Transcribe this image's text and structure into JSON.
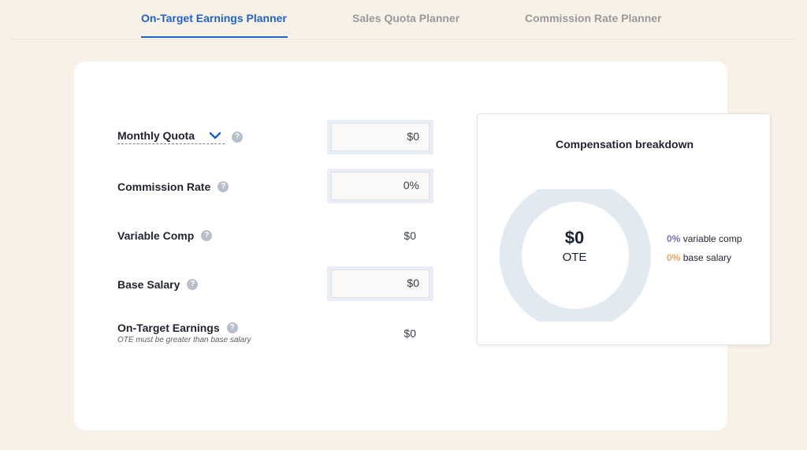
{
  "tabs": [
    {
      "label": "On-Target Earnings Planner",
      "active": true
    },
    {
      "label": "Sales Quota Planner",
      "active": false
    },
    {
      "label": "Commission Rate Planner",
      "active": false
    }
  ],
  "form": {
    "monthly_quota": {
      "label": "Monthly Quota",
      "value": "$0"
    },
    "commission_rate": {
      "label": "Commission Rate",
      "value": "0%"
    },
    "variable_comp": {
      "label": "Variable Comp",
      "value": "$0"
    },
    "base_salary": {
      "label": "Base Salary",
      "value": "$0"
    },
    "ote": {
      "label": "On-Target Earnings",
      "note": "OTE must be greater than base salary",
      "value": "$0"
    }
  },
  "breakdown": {
    "title": "Compensation breakdown",
    "center_amount": "$0",
    "center_label": "OTE",
    "legend": [
      {
        "pct": "0%",
        "label": "variable comp",
        "color": "#7b6fbf"
      },
      {
        "pct": "0%",
        "label": "base salary",
        "color": "#f0a25c"
      }
    ]
  },
  "colors": {
    "accent": "#1f63c8",
    "background": "#f8f1e7",
    "donut_ring": "#e3e9f1"
  },
  "icons": {
    "help": "question-circle-icon",
    "dropdown": "chevron-down-icon"
  }
}
